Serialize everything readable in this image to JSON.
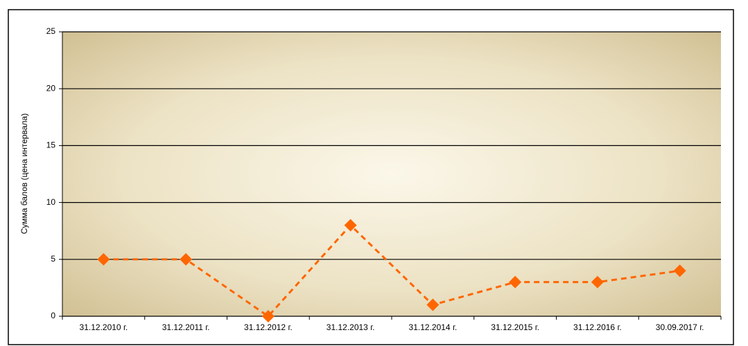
{
  "chart_data": {
    "type": "line",
    "y_label": "Сумма балов (цена интервала)",
    "categories": [
      "31.12.2010 г.",
      "31.12.2011 г.",
      "31.12.2012 г.",
      "31.12.2013 г.",
      "31.12.2014 г.",
      "31.12.2015 г.",
      "31.12.2016 г.",
      "30.09.2017 г."
    ],
    "series": [
      {
        "color": "#ff6600",
        "values": [
          5,
          5,
          0,
          8,
          1,
          3,
          3,
          4
        ]
      }
    ],
    "ylim": [
      0,
      25
    ],
    "yticks": [
      0,
      5,
      10,
      15,
      20,
      25
    ],
    "grid": true,
    "line_style": "dashed"
  }
}
